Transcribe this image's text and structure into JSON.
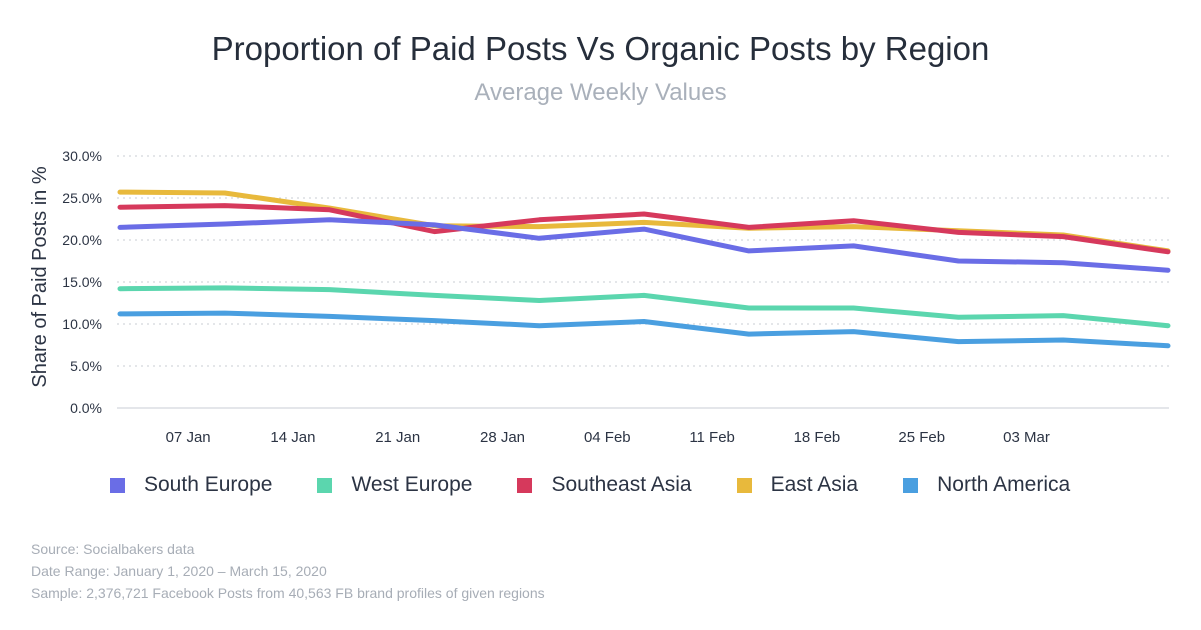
{
  "title": "Proportion of Paid Posts Vs Organic Posts by Region",
  "subtitle": "Average Weekly Values",
  "chart_data": {
    "type": "line",
    "title": "Proportion of Paid Posts Vs Organic Posts by Region",
    "subtitle": "Average Weekly Values",
    "xlabel": "",
    "ylabel": "Share of Paid Posts in %",
    "ylim": [
      0,
      30
    ],
    "yticks": [
      "0.0%",
      "5.0%",
      "10.0%",
      "15.0%",
      "20.0%",
      "25.0%",
      "30.0%"
    ],
    "xtick_labels": [
      "07 Jan",
      "14 Jan",
      "21 Jan",
      "28 Jan",
      "04 Feb",
      "11 Feb",
      "18 Feb",
      "25 Feb",
      "03 Mar"
    ],
    "x": [
      0,
      1,
      2,
      3,
      4,
      5,
      6,
      7,
      8,
      9,
      10
    ],
    "grid": true,
    "legend_position": "bottom",
    "series": [
      {
        "name": "East Asia",
        "color": "#e8b93c",
        "values": [
          25.7,
          25.6,
          23.8,
          21.7,
          21.6,
          22.1,
          21.4,
          21.6,
          21.1,
          20.6,
          18.7
        ]
      },
      {
        "name": "Southeast Asia",
        "color": "#d6395c",
        "values": [
          23.9,
          24.1,
          23.6,
          21.0,
          22.4,
          23.1,
          21.5,
          22.3,
          20.9,
          20.4,
          18.6
        ]
      },
      {
        "name": "South Europe",
        "color": "#6a6de6",
        "values": [
          21.5,
          21.9,
          22.4,
          21.8,
          20.2,
          21.3,
          18.7,
          19.3,
          17.5,
          17.3,
          16.4
        ]
      },
      {
        "name": "West Europe",
        "color": "#5bd6ae",
        "values": [
          14.2,
          14.3,
          14.1,
          13.4,
          12.8,
          13.4,
          11.9,
          11.9,
          10.8,
          11.0,
          9.8
        ]
      },
      {
        "name": "North America",
        "color": "#4a9fe0",
        "values": [
          11.2,
          11.3,
          10.9,
          10.4,
          9.8,
          10.3,
          8.8,
          9.1,
          7.9,
          8.1,
          7.4
        ]
      }
    ]
  },
  "legend": [
    {
      "label": "South Europe",
      "color": "#6a6de6"
    },
    {
      "label": "West Europe",
      "color": "#5bd6ae"
    },
    {
      "label": "Southeast Asia",
      "color": "#d6395c"
    },
    {
      "label": "East Asia",
      "color": "#e8b93c"
    },
    {
      "label": "North America",
      "color": "#4a9fe0"
    }
  ],
  "footer": {
    "source": "Source: Socialbakers data",
    "date_range": "Date Range: January 1, 2020  – March 15, 2020",
    "sample": "Sample: 2,376,721 Facebook Posts from 40,563 FB brand profiles of given regions"
  }
}
